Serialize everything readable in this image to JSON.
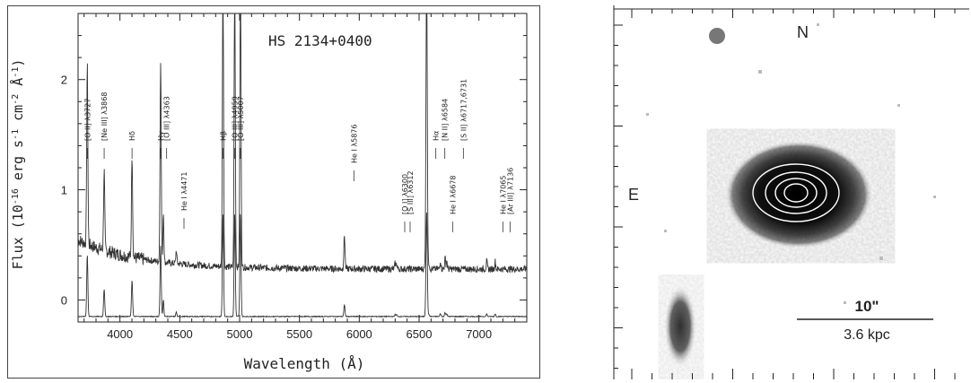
{
  "spectrum": {
    "object_label": "HS 2134+0400",
    "ylabel": "Flux (10^-16 erg s^-1 cm^-2 Å^-1)",
    "ylabel_parts": {
      "main": "Flux (10",
      "exp1": "-16",
      "mid1": " erg s",
      "exp2": "-1",
      "mid2": " cm",
      "exp3": "-2",
      "mid3": " Å",
      "exp4": "-1",
      "end": ")"
    },
    "xlabel": "Wavelength (Å)",
    "line_labels": [
      "[O II] λ3727",
      "[Ne III] λ3868",
      "Hδ",
      "Hγ",
      "[O III] λ4363",
      "He I λ4471",
      "Hβ",
      "[O III] λ4959",
      "[O III] λ5007",
      "He I λ5876",
      "[O I] λ6300",
      "[S III] λ6312",
      "Hα",
      "[N II] λ6584",
      "He I λ6678",
      "[S II] λ6717,6731",
      "He I λ7065",
      "[Ar III] λ7136"
    ]
  },
  "image": {
    "north": "N",
    "east": "E",
    "scale_arcsec": "10\"",
    "scale_kpc": "3.6 kpc"
  },
  "chart_data": [
    {
      "type": "line",
      "title": "HS 2134+0400",
      "xlabel": "Wavelength (Å)",
      "ylabel": "Flux (10^-16 erg s^-1 cm^-2 Å^-1)",
      "xlim": [
        3650,
        7400
      ],
      "ylim": [
        -0.2,
        2.6
      ],
      "xticks": [
        4000,
        4500,
        5000,
        5500,
        6000,
        6500,
        7000
      ],
      "yticks": [
        0,
        1,
        2
      ],
      "grid": false,
      "continuum": {
        "level": 0.28,
        "blue_level": 0.52
      },
      "emission_lines": [
        {
          "label": "[O II] λ3727",
          "x": 3727,
          "peak": 1.62,
          "width": 8
        },
        {
          "label": "[Ne III] λ3868",
          "x": 3868,
          "peak": 0.72,
          "width": 8
        },
        {
          "label": "Hδ",
          "x": 4101,
          "peak": 0.95,
          "width": 8
        },
        {
          "label": "Hγ",
          "x": 4340,
          "peak": 1.83,
          "width": 8
        },
        {
          "label": "[O III] λ4363",
          "x": 4363,
          "peak": 0.45,
          "width": 7
        },
        {
          "label": "He I λ4471",
          "x": 4471,
          "peak": 0.12,
          "width": 7
        },
        {
          "label": "Hβ",
          "x": 4861,
          "peak": 2.7,
          "width": 8
        },
        {
          "label": "[O III] λ4959",
          "x": 4959,
          "peak": 2.7,
          "width": 8
        },
        {
          "label": "[O III] λ5007",
          "x": 5007,
          "peak": 2.7,
          "width": 8
        },
        {
          "label": "He I λ5876",
          "x": 5876,
          "peak": 0.3,
          "width": 8
        },
        {
          "label": "[O I] λ6300",
          "x": 6300,
          "peak": 0.05,
          "width": 7
        },
        {
          "label": "[S III] λ6312",
          "x": 6312,
          "peak": 0.05,
          "width": 7
        },
        {
          "label": "Hα",
          "x": 6563,
          "peak": 2.7,
          "width": 9
        },
        {
          "label": "[N II] λ6584",
          "x": 6584,
          "peak": 0.05,
          "width": 7
        },
        {
          "label": "He I λ6678",
          "x": 6678,
          "peak": 0.08,
          "width": 7
        },
        {
          "label": "[S II] λ6717",
          "x": 6717,
          "peak": 0.1,
          "width": 7
        },
        {
          "label": "[S II] λ6731",
          "x": 6731,
          "peak": 0.08,
          "width": 7
        },
        {
          "label": "He I λ7065",
          "x": 7065,
          "peak": 0.07,
          "width": 7
        },
        {
          "label": "[Ar III] λ7136",
          "x": 7136,
          "peak": 0.07,
          "width": 7
        }
      ],
      "series": [
        {
          "offset": 0.28
        },
        {
          "offset": -0.15
        }
      ]
    }
  ]
}
